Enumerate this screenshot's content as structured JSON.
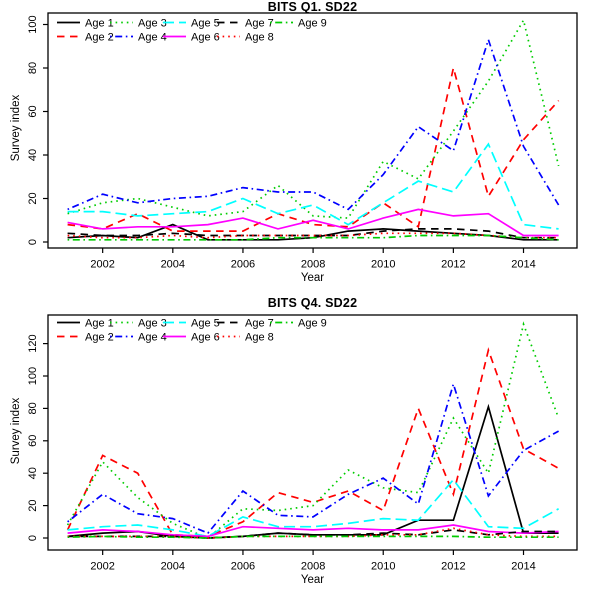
{
  "figure": {
    "background": "#FFFFFF",
    "axis_color": "#000000",
    "text_color": "#000000"
  },
  "chart_data": [
    {
      "type": "line",
      "title": "BITS Q1. SD22",
      "xlabel": "Year",
      "ylabel": "Survey index",
      "x": [
        2001,
        2002,
        2003,
        2004,
        2005,
        2006,
        2007,
        2008,
        2009,
        2010,
        2011,
        2012,
        2013,
        2014,
        2015
      ],
      "xticks": [
        2002,
        2004,
        2006,
        2008,
        2010,
        2012,
        2014
      ],
      "yticks": [
        0,
        20,
        40,
        60,
        80,
        100
      ],
      "xlim": [
        2001,
        2015
      ],
      "ylim": [
        0,
        102
      ],
      "grid": false,
      "legend_position": "top-left",
      "legend_columns": 5,
      "series": [
        {
          "name": "Age 1",
          "color": "#000000",
          "linestyle": "solid",
          "values": [
            2,
            3,
            2,
            8,
            1,
            1,
            1,
            2,
            5,
            6,
            5,
            4,
            3,
            1,
            1
          ]
        },
        {
          "name": "Age 2",
          "color": "#FF0000",
          "linestyle": "dashed",
          "values": [
            8,
            6,
            13,
            5,
            5,
            5,
            13,
            8,
            7,
            18,
            7,
            80,
            21,
            47,
            65
          ]
        },
        {
          "name": "Age 3",
          "color": "#00CC00",
          "linestyle": "dotted",
          "values": [
            13,
            18,
            20,
            16,
            12,
            14,
            26,
            12,
            11,
            37,
            29,
            51,
            74,
            102,
            35
          ]
        },
        {
          "name": "Age 4",
          "color": "#0000FF",
          "linestyle": "dotdash",
          "values": [
            15,
            22,
            18,
            20,
            21,
            25,
            23,
            23,
            15,
            31,
            53,
            42,
            93,
            44,
            17
          ]
        },
        {
          "name": "Age 5",
          "color": "#00FFFF",
          "linestyle": "longdash",
          "values": [
            14,
            14,
            12,
            13,
            14,
            20,
            13,
            17,
            8,
            18,
            28,
            23,
            45,
            8,
            6
          ]
        },
        {
          "name": "Age 6",
          "color": "#FF00FF",
          "linestyle": "solid",
          "values": [
            9,
            6,
            7,
            7,
            8,
            11,
            6,
            10,
            6,
            11,
            15,
            12,
            13,
            3,
            3
          ]
        },
        {
          "name": "Age 7",
          "color": "#000000",
          "linestyle": "dashed",
          "values": [
            4,
            3,
            3,
            4,
            3,
            3,
            3,
            3,
            3,
            5,
            6,
            6,
            5,
            2,
            2
          ]
        },
        {
          "name": "Age 8",
          "color": "#FF0000",
          "linestyle": "dotted",
          "values": [
            3,
            2,
            2,
            3,
            2,
            3,
            3,
            3,
            3,
            4,
            4,
            4,
            3,
            2,
            2
          ]
        },
        {
          "name": "Age 9",
          "color": "#00CC00",
          "linestyle": "dotdash",
          "values": [
            1,
            1,
            1,
            1,
            1,
            1,
            2,
            2,
            2,
            2,
            3,
            3,
            3,
            2,
            1
          ]
        }
      ]
    },
    {
      "type": "line",
      "title": "BITS Q4. SD22",
      "xlabel": "Year",
      "ylabel": "Survey index",
      "x": [
        2001,
        2002,
        2003,
        2004,
        2005,
        2006,
        2007,
        2008,
        2009,
        2010,
        2011,
        2012,
        2013,
        2014,
        2015
      ],
      "xticks": [
        2002,
        2004,
        2006,
        2008,
        2010,
        2012,
        2014
      ],
      "yticks": [
        0,
        20,
        40,
        60,
        80,
        100,
        120
      ],
      "xlim": [
        2001,
        2015
      ],
      "ylim": [
        0,
        132
      ],
      "grid": false,
      "legend_position": "top-left",
      "legend_columns": 5,
      "series": [
        {
          "name": "Age 1",
          "color": "#000000",
          "linestyle": "solid",
          "values": [
            1,
            3,
            4,
            1,
            0,
            1,
            3,
            2,
            2,
            2,
            11,
            11,
            81,
            3,
            3
          ]
        },
        {
          "name": "Age 2",
          "color": "#FF0000",
          "linestyle": "dashed",
          "values": [
            5,
            51,
            40,
            2,
            1,
            10,
            28,
            22,
            29,
            17,
            80,
            27,
            116,
            55,
            43
          ]
        },
        {
          "name": "Age 3",
          "color": "#00CC00",
          "linestyle": "dotted",
          "values": [
            8,
            47,
            25,
            9,
            0,
            18,
            17,
            20,
            42,
            31,
            28,
            74,
            40,
            132,
            74
          ]
        },
        {
          "name": "Age 4",
          "color": "#0000FF",
          "linestyle": "dotdash",
          "values": [
            10,
            27,
            15,
            12,
            3,
            29,
            14,
            13,
            27,
            37,
            21,
            95,
            26,
            54,
            66
          ]
        },
        {
          "name": "Age 5",
          "color": "#00FFFF",
          "linestyle": "longdash",
          "values": [
            5,
            7,
            8,
            5,
            1,
            13,
            7,
            7,
            9,
            12,
            11,
            36,
            7,
            6,
            18
          ]
        },
        {
          "name": "Age 6",
          "color": "#FF00FF",
          "linestyle": "solid",
          "values": [
            3,
            5,
            4,
            2,
            1,
            7,
            6,
            5,
            6,
            5,
            5,
            8,
            4,
            3,
            4
          ]
        },
        {
          "name": "Age 7",
          "color": "#000000",
          "linestyle": "dashed",
          "values": [
            1,
            1,
            1,
            1,
            0,
            1,
            3,
            2,
            2,
            3,
            2,
            5,
            2,
            4,
            4
          ]
        },
        {
          "name": "Age 8",
          "color": "#FF0000",
          "linestyle": "dotted",
          "values": [
            1,
            1,
            1,
            1,
            0,
            1,
            1,
            1,
            1,
            2,
            2,
            6,
            2,
            1,
            1
          ]
        },
        {
          "name": "Age 9",
          "color": "#00CC00",
          "linestyle": "dotdash",
          "values": [
            0.5,
            1,
            0.5,
            0.5,
            0,
            1,
            1,
            1,
            1,
            1,
            1,
            1,
            0.5,
            0.5,
            0.5
          ]
        }
      ]
    }
  ]
}
